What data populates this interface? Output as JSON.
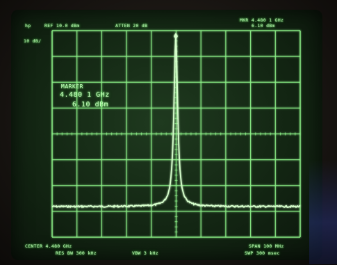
{
  "screen": {
    "top_left_scale": "10 dB/",
    "top_left_label": "hp",
    "reference_level": "REF  10.0 dBm",
    "attenuation": "ATTEN 20 dB",
    "marker_header": "MKR 4.480 1 GHz",
    "marker_header_level": "6.10 dBm"
  },
  "marker": {
    "title": "MARKER",
    "frequency": "4.480 1 GHz",
    "level": "6.10 dBm"
  },
  "bottom": {
    "center": "CENTER 4.480 GHz",
    "span": "SPAN 100 MHz",
    "res_bw": "RES BW 300 kHz",
    "vbw": "VBW 3 kHz",
    "sweep": "SWP 300 msec"
  },
  "colors": {
    "trace": "#d6ffcc",
    "graticule": "#8ef58a"
  }
}
